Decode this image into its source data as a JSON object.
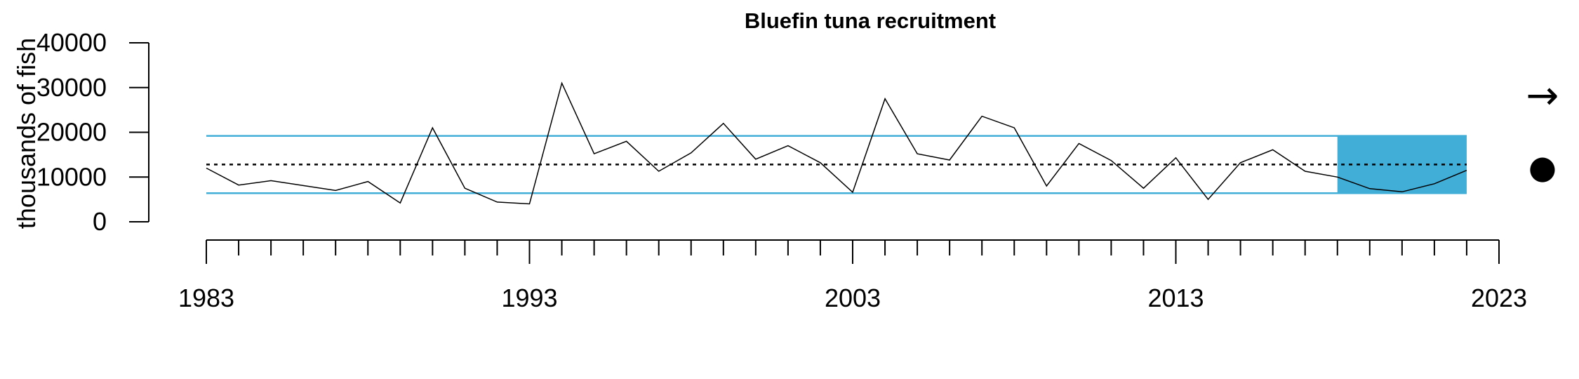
{
  "chart_data": {
    "type": "line",
    "title": "Bluefin tuna recruitment",
    "ylabel": "thousands of fish",
    "xlabel": "",
    "xlim": [
      1983,
      2023
    ],
    "ylim": [
      0,
      40000
    ],
    "y_ticks": [
      0,
      10000,
      20000,
      30000,
      40000
    ],
    "y_tick_labels": [
      "0",
      "10000",
      "20000",
      "30000",
      "40000"
    ],
    "x_labeled_ticks": [
      1983,
      1993,
      2003,
      2013,
      2023
    ],
    "x_tick_labels": [
      "1983",
      "1993",
      "2003",
      "2013",
      "2023"
    ],
    "x_minor_ticks_every": 1,
    "series": [
      {
        "x": [
          1983,
          1984,
          1985,
          1986,
          1987,
          1988,
          1989,
          1990,
          1991,
          1992,
          1993,
          1994,
          1995,
          1996,
          1997,
          1998,
          1999,
          2000,
          2001,
          2002,
          2003,
          2004,
          2005,
          2006,
          2007,
          2008,
          2009,
          2010,
          2011,
          2012,
          2013,
          2014,
          2015,
          2016,
          2017,
          2018,
          2019,
          2020,
          2021,
          2022
        ],
        "values": [
          12000,
          8200,
          9200,
          8100,
          7000,
          9000,
          4200,
          21000,
          7500,
          4400,
          4000,
          31000,
          15200,
          18000,
          11300,
          15400,
          22000,
          14000,
          17000,
          13200,
          6600,
          27500,
          15200,
          13800,
          23600,
          21000,
          8000,
          17500,
          13700,
          7500,
          14300,
          5000,
          13200,
          16100,
          11300,
          10000,
          7400,
          6700,
          8500,
          11500
        ]
      }
    ],
    "reference_lines": {
      "mean": 12800,
      "upper": 19200,
      "lower": 6400
    },
    "shaded_region": {
      "x_from": 2018,
      "x_to": 2022,
      "y_from": 6400,
      "y_to": 19200
    },
    "indicators": {
      "trend": "→",
      "status": "●"
    },
    "colors": {
      "bounds": "#41AED8",
      "line": "#000000",
      "mean": "#000000"
    }
  }
}
